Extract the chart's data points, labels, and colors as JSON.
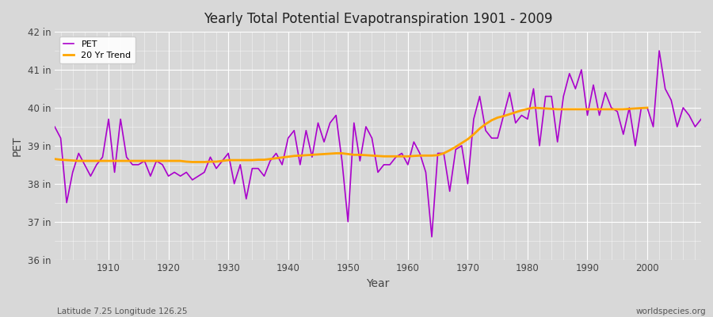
{
  "title": "Yearly Total Potential Evapotranspiration 1901 - 2009",
  "xlabel": "Year",
  "ylabel": "PET",
  "subtitle_left": "Latitude 7.25 Longitude 126.25",
  "subtitle_right": "worldspecies.org",
  "bg_color": "#d8d8d8",
  "plot_bg_color": "#d8d8d8",
  "pet_color": "#aa00cc",
  "trend_color": "#ffa500",
  "pet_linewidth": 1.2,
  "trend_linewidth": 2.0,
  "ylim": [
    36,
    42
  ],
  "xlim": [
    1901,
    2009
  ],
  "ytick_labels": [
    "36 in",
    "37 in",
    "38 in",
    "39 in",
    "40 in",
    "41 in",
    "42 in"
  ],
  "ytick_values": [
    36,
    37,
    38,
    39,
    40,
    41,
    42
  ],
  "xtick_values": [
    1910,
    1920,
    1930,
    1940,
    1950,
    1960,
    1970,
    1980,
    1990,
    2000
  ],
  "years": [
    1901,
    1902,
    1903,
    1904,
    1905,
    1906,
    1907,
    1908,
    1909,
    1910,
    1911,
    1912,
    1913,
    1914,
    1915,
    1916,
    1917,
    1918,
    1919,
    1920,
    1921,
    1922,
    1923,
    1924,
    1925,
    1926,
    1927,
    1928,
    1929,
    1930,
    1931,
    1932,
    1933,
    1934,
    1935,
    1936,
    1937,
    1938,
    1939,
    1940,
    1941,
    1942,
    1943,
    1944,
    1945,
    1946,
    1947,
    1948,
    1949,
    1950,
    1951,
    1952,
    1953,
    1954,
    1955,
    1956,
    1957,
    1958,
    1959,
    1960,
    1961,
    1962,
    1963,
    1964,
    1965,
    1966,
    1967,
    1968,
    1969,
    1970,
    1971,
    1972,
    1973,
    1974,
    1975,
    1976,
    1977,
    1978,
    1979,
    1980,
    1981,
    1982,
    1983,
    1984,
    1985,
    1986,
    1987,
    1988,
    1989,
    1990,
    1991,
    1992,
    1993,
    1994,
    1995,
    1996,
    1997,
    1998,
    1999,
    2000,
    2001,
    2002,
    2003,
    2004,
    2005,
    2006,
    2007,
    2008,
    2009
  ],
  "pet_values": [
    39.5,
    39.2,
    37.5,
    38.3,
    38.8,
    38.5,
    38.2,
    38.5,
    38.7,
    39.7,
    38.3,
    39.7,
    38.7,
    38.5,
    38.5,
    38.6,
    38.2,
    38.6,
    38.5,
    38.2,
    38.3,
    38.2,
    38.3,
    38.1,
    38.2,
    38.3,
    38.7,
    38.4,
    38.6,
    38.8,
    38.0,
    38.5,
    37.6,
    38.4,
    38.4,
    38.2,
    38.6,
    38.8,
    38.5,
    39.2,
    39.4,
    38.5,
    39.4,
    38.7,
    39.6,
    39.1,
    39.6,
    39.8,
    38.6,
    37.0,
    39.6,
    38.6,
    39.5,
    39.2,
    38.3,
    38.5,
    38.5,
    38.7,
    38.8,
    38.5,
    39.1,
    38.8,
    38.3,
    36.6,
    38.8,
    38.8,
    37.8,
    38.9,
    39.0,
    38.0,
    39.7,
    40.3,
    39.4,
    39.2,
    39.2,
    39.8,
    40.4,
    39.6,
    39.8,
    39.7,
    40.5,
    39.0,
    40.3,
    40.3,
    39.1,
    40.3,
    40.9,
    40.5,
    41.0,
    39.8,
    40.6,
    39.8,
    40.4,
    40.0,
    39.9,
    39.3,
    40.0,
    39.0,
    40.0,
    40.0,
    39.5,
    41.5,
    40.5,
    40.2,
    39.5,
    40.0,
    39.8,
    39.5,
    39.7
  ],
  "trend_years": [
    1901,
    1902,
    1903,
    1904,
    1905,
    1906,
    1907,
    1908,
    1909,
    1910,
    1911,
    1912,
    1913,
    1914,
    1915,
    1916,
    1917,
    1918,
    1919,
    1920,
    1921,
    1922,
    1923,
    1924,
    1925,
    1926,
    1927,
    1928,
    1929,
    1930,
    1931,
    1932,
    1933,
    1934,
    1935,
    1936,
    1937,
    1938,
    1939,
    1940,
    1941,
    1942,
    1943,
    1944,
    1945,
    1946,
    1947,
    1948,
    1949,
    1950,
    1951,
    1952,
    1953,
    1954,
    1955,
    1956,
    1957,
    1958,
    1959,
    1960,
    1961,
    1962,
    1963,
    1964,
    1965,
    1966,
    1967,
    1968,
    1969,
    1970,
    1971,
    1972,
    1973,
    1974,
    1975,
    1976,
    1977,
    1978,
    1979,
    1980,
    1981,
    1982,
    1983,
    1984,
    1985,
    1986,
    1987,
    1988,
    1989,
    1990,
    1991,
    1992,
    1993,
    1994,
    1995,
    1996,
    1997,
    1998,
    1999,
    2000
  ],
  "trend_values": [
    38.65,
    38.63,
    38.62,
    38.61,
    38.6,
    38.6,
    38.6,
    38.6,
    38.6,
    38.6,
    38.6,
    38.6,
    38.6,
    38.6,
    38.6,
    38.6,
    38.6,
    38.6,
    38.6,
    38.6,
    38.6,
    38.6,
    38.58,
    38.57,
    38.57,
    38.57,
    38.58,
    38.58,
    38.6,
    38.62,
    38.62,
    38.62,
    38.62,
    38.62,
    38.63,
    38.63,
    38.65,
    38.67,
    38.69,
    38.71,
    38.73,
    38.74,
    38.75,
    38.76,
    38.77,
    38.78,
    38.79,
    38.8,
    38.8,
    38.78,
    38.76,
    38.76,
    38.75,
    38.74,
    38.73,
    38.72,
    38.72,
    38.72,
    38.72,
    38.72,
    38.73,
    38.74,
    38.74,
    38.74,
    38.75,
    38.8,
    38.88,
    38.97,
    39.07,
    39.17,
    39.3,
    39.45,
    39.57,
    39.67,
    39.74,
    39.78,
    39.83,
    39.88,
    39.93,
    39.97,
    40.0,
    39.99,
    39.98,
    39.97,
    39.96,
    39.96,
    39.96,
    39.96,
    39.96,
    39.96,
    39.96,
    39.96,
    39.96,
    39.96,
    39.96,
    39.96,
    39.97,
    39.98,
    39.99,
    40.0
  ]
}
